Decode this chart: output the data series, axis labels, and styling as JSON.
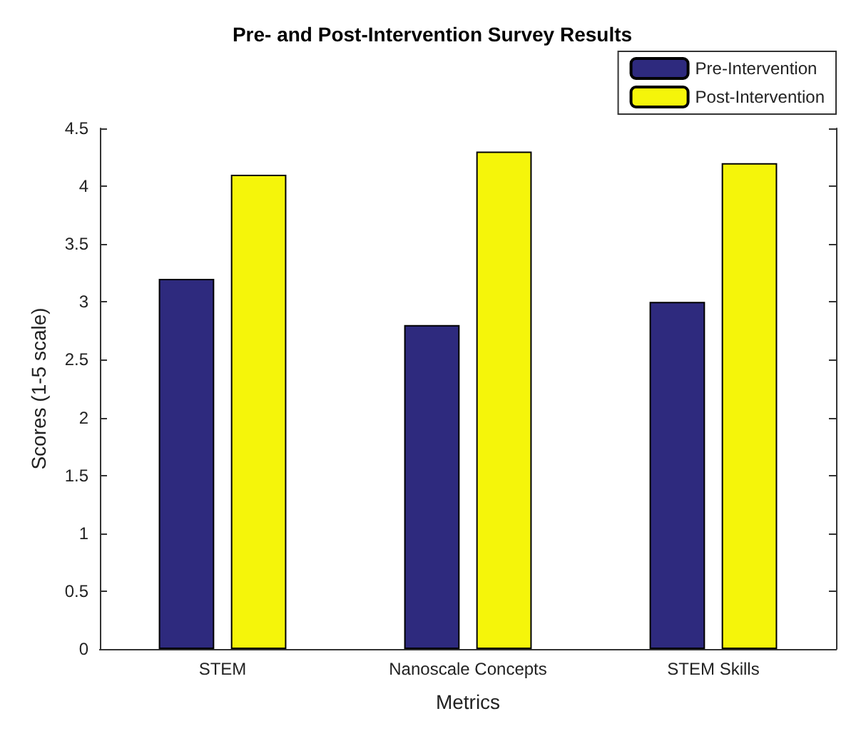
{
  "chart_data": {
    "type": "bar",
    "title": "Pre- and Post-Intervention Survey Results",
    "xlabel": "Metrics",
    "ylabel": "Scores (1-5 scale)",
    "categories": [
      "STEM",
      "Nanoscale Concepts",
      "STEM Skills"
    ],
    "series": [
      {
        "name": "Pre-Intervention",
        "color": "#2e2a7e",
        "values": [
          3.2,
          2.8,
          3.0
        ]
      },
      {
        "name": "Post-Intervention",
        "color": "#f5f50a",
        "values": [
          4.1,
          4.3,
          4.2
        ]
      }
    ],
    "ylim": [
      0,
      4.5
    ],
    "yticks": [
      0,
      0.5,
      1,
      1.5,
      2,
      2.5,
      3,
      3.5,
      4,
      4.5
    ],
    "grid": false,
    "legend": "top right"
  }
}
